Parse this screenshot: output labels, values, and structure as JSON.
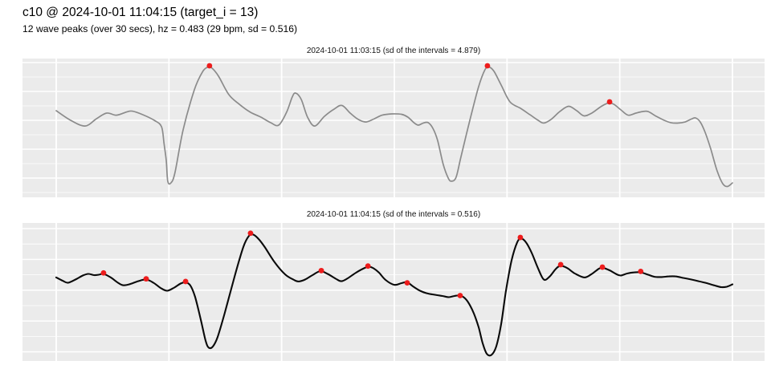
{
  "header": {
    "title": "c10 @ 2024-10-01 11:04:15 (target_i = 13)",
    "subtitle": "12 wave peaks (over 30 secs), hz = 0.483 (29 bpm, sd = 0.516)"
  },
  "colors": {
    "figure_background": "#ffffff",
    "strip_background": "#d4d4d4",
    "panel_background": "#ebebeb",
    "gridline": "#ffffff",
    "peak_marker": "#ed1c1c",
    "line_top_panel": "#8b8b8b",
    "line_bottom_panel": "#0a0a0a"
  },
  "chart_data": [
    {
      "type": "line",
      "strip_label": "2024-10-01 11:03:15 (sd of the intervals = 4.879)",
      "x_unit": "seconds",
      "x_range": [
        0,
        30
      ],
      "x_gridline_step": 5,
      "y_unit": "normalized amplitude (no axis labels shown)",
      "y_range": [
        0,
        1
      ],
      "grid": true,
      "legend": "none",
      "line_color": "#8b8b8b",
      "peak_color": "#ed1c1c",
      "peak_count": 3,
      "points": [
        [
          0.0,
          0.624
        ],
        [
          0.64,
          0.555
        ],
        [
          1.28,
          0.514
        ],
        [
          1.78,
          0.566
        ],
        [
          2.24,
          0.607
        ],
        [
          2.67,
          0.592
        ],
        [
          3.14,
          0.616
        ],
        [
          3.38,
          0.621
        ],
        [
          3.85,
          0.595
        ],
        [
          4.35,
          0.555
        ],
        [
          4.67,
          0.509
        ],
        [
          4.78,
          0.39
        ],
        [
          4.88,
          0.266
        ],
        [
          4.95,
          0.116
        ],
        [
          5.09,
          0.104
        ],
        [
          5.27,
          0.179
        ],
        [
          5.63,
          0.486
        ],
        [
          6.13,
          0.775
        ],
        [
          6.48,
          0.902
        ],
        [
          6.73,
          0.939
        ],
        [
          6.91,
          0.931
        ],
        [
          7.2,
          0.873
        ],
        [
          7.66,
          0.74
        ],
        [
          8.12,
          0.671
        ],
        [
          8.62,
          0.613
        ],
        [
          9.08,
          0.578
        ],
        [
          9.51,
          0.538
        ],
        [
          9.87,
          0.52
        ],
        [
          10.22,
          0.613
        ],
        [
          10.47,
          0.723
        ],
        [
          10.62,
          0.751
        ],
        [
          10.87,
          0.705
        ],
        [
          11.15,
          0.578
        ],
        [
          11.47,
          0.514
        ],
        [
          11.9,
          0.584
        ],
        [
          12.33,
          0.636
        ],
        [
          12.68,
          0.662
        ],
        [
          13.04,
          0.607
        ],
        [
          13.4,
          0.561
        ],
        [
          13.75,
          0.543
        ],
        [
          14.11,
          0.566
        ],
        [
          14.46,
          0.592
        ],
        [
          14.89,
          0.601
        ],
        [
          15.32,
          0.598
        ],
        [
          15.6,
          0.578
        ],
        [
          15.89,
          0.535
        ],
        [
          16.07,
          0.52
        ],
        [
          16.28,
          0.535
        ],
        [
          16.5,
          0.538
        ],
        [
          16.71,
          0.497
        ],
        [
          16.92,
          0.41
        ],
        [
          17.17,
          0.237
        ],
        [
          17.39,
          0.139
        ],
        [
          17.53,
          0.116
        ],
        [
          17.74,
          0.145
        ],
        [
          17.96,
          0.295
        ],
        [
          18.35,
          0.555
        ],
        [
          18.74,
          0.798
        ],
        [
          19.02,
          0.919
        ],
        [
          19.2,
          0.939
        ],
        [
          19.42,
          0.908
        ],
        [
          19.74,
          0.809
        ],
        [
          20.13,
          0.688
        ],
        [
          20.59,
          0.642
        ],
        [
          21.02,
          0.595
        ],
        [
          21.38,
          0.555
        ],
        [
          21.63,
          0.535
        ],
        [
          21.95,
          0.561
        ],
        [
          22.34,
          0.618
        ],
        [
          22.73,
          0.656
        ],
        [
          23.09,
          0.624
        ],
        [
          23.41,
          0.587
        ],
        [
          23.76,
          0.607
        ],
        [
          24.16,
          0.653
        ],
        [
          24.48,
          0.679
        ],
        [
          24.73,
          0.671
        ],
        [
          25.05,
          0.63
        ],
        [
          25.37,
          0.592
        ],
        [
          25.72,
          0.607
        ],
        [
          26.01,
          0.618
        ],
        [
          26.26,
          0.618
        ],
        [
          26.62,
          0.584
        ],
        [
          26.97,
          0.555
        ],
        [
          27.26,
          0.538
        ],
        [
          27.61,
          0.535
        ],
        [
          27.9,
          0.543
        ],
        [
          28.18,
          0.564
        ],
        [
          28.36,
          0.572
        ],
        [
          28.57,
          0.543
        ],
        [
          28.79,
          0.468
        ],
        [
          29.04,
          0.347
        ],
        [
          29.32,
          0.191
        ],
        [
          29.57,
          0.098
        ],
        [
          29.78,
          0.078
        ],
        [
          30.0,
          0.104
        ]
      ],
      "peaks": [
        [
          6.8,
          0.948
        ],
        [
          19.13,
          0.948
        ],
        [
          24.55,
          0.688
        ]
      ]
    },
    {
      "type": "line",
      "strip_label": "2024-10-01 11:04:15 (sd of the intervals = 0.516)",
      "x_unit": "seconds",
      "x_range": [
        0,
        30
      ],
      "x_gridline_step": 5,
      "y_unit": "normalized amplitude (no axis labels shown)",
      "y_range": [
        0,
        1
      ],
      "grid": true,
      "legend": "none",
      "line_color": "#0a0a0a",
      "peak_color": "#ed1c1c",
      "peak_count": 12,
      "points": [
        [
          0.0,
          0.605
        ],
        [
          0.29,
          0.581
        ],
        [
          0.53,
          0.567
        ],
        [
          0.89,
          0.593
        ],
        [
          1.18,
          0.619
        ],
        [
          1.43,
          0.631
        ],
        [
          1.67,
          0.622
        ],
        [
          1.89,
          0.625
        ],
        [
          2.1,
          0.631
        ],
        [
          2.42,
          0.605
        ],
        [
          2.74,
          0.567
        ],
        [
          2.96,
          0.549
        ],
        [
          3.24,
          0.555
        ],
        [
          3.63,
          0.578
        ],
        [
          3.99,
          0.59
        ],
        [
          4.31,
          0.567
        ],
        [
          4.63,
          0.529
        ],
        [
          4.92,
          0.509
        ],
        [
          5.24,
          0.532
        ],
        [
          5.52,
          0.561
        ],
        [
          5.74,
          0.57
        ],
        [
          5.95,
          0.547
        ],
        [
          6.16,
          0.465
        ],
        [
          6.41,
          0.302
        ],
        [
          6.63,
          0.145
        ],
        [
          6.77,
          0.096
        ],
        [
          6.95,
          0.105
        ],
        [
          7.16,
          0.174
        ],
        [
          7.48,
          0.349
        ],
        [
          7.91,
          0.61
        ],
        [
          8.3,
          0.826
        ],
        [
          8.55,
          0.907
        ],
        [
          8.73,
          0.916
        ],
        [
          8.98,
          0.884
        ],
        [
          9.26,
          0.823
        ],
        [
          9.69,
          0.715
        ],
        [
          10.15,
          0.628
        ],
        [
          10.55,
          0.587
        ],
        [
          10.76,
          0.576
        ],
        [
          11.04,
          0.59
        ],
        [
          11.4,
          0.625
        ],
        [
          11.72,
          0.651
        ],
        [
          12.04,
          0.631
        ],
        [
          12.4,
          0.596
        ],
        [
          12.65,
          0.578
        ],
        [
          12.93,
          0.599
        ],
        [
          13.32,
          0.642
        ],
        [
          13.72,
          0.677
        ],
        [
          13.89,
          0.683
        ],
        [
          14.07,
          0.672
        ],
        [
          14.32,
          0.64
        ],
        [
          14.61,
          0.587
        ],
        [
          15.0,
          0.552
        ],
        [
          15.32,
          0.564
        ],
        [
          15.57,
          0.57
        ],
        [
          15.85,
          0.538
        ],
        [
          16.14,
          0.509
        ],
        [
          16.42,
          0.491
        ],
        [
          16.78,
          0.48
        ],
        [
          17.13,
          0.471
        ],
        [
          17.42,
          0.462
        ],
        [
          17.67,
          0.471
        ],
        [
          17.89,
          0.474
        ],
        [
          18.1,
          0.459
        ],
        [
          18.31,
          0.416
        ],
        [
          18.53,
          0.343
        ],
        [
          18.74,
          0.244
        ],
        [
          18.92,
          0.128
        ],
        [
          19.1,
          0.052
        ],
        [
          19.31,
          0.044
        ],
        [
          19.52,
          0.105
        ],
        [
          19.74,
          0.267
        ],
        [
          19.95,
          0.506
        ],
        [
          20.2,
          0.727
        ],
        [
          20.45,
          0.86
        ],
        [
          20.63,
          0.887
        ],
        [
          20.84,
          0.86
        ],
        [
          21.09,
          0.785
        ],
        [
          21.38,
          0.669
        ],
        [
          21.63,
          0.59
        ],
        [
          21.88,
          0.61
        ],
        [
          22.16,
          0.666
        ],
        [
          22.37,
          0.689
        ],
        [
          22.66,
          0.674
        ],
        [
          23.01,
          0.634
        ],
        [
          23.44,
          0.605
        ],
        [
          23.76,
          0.631
        ],
        [
          24.08,
          0.669
        ],
        [
          24.26,
          0.674
        ],
        [
          24.55,
          0.657
        ],
        [
          24.83,
          0.631
        ],
        [
          25.04,
          0.619
        ],
        [
          25.33,
          0.634
        ],
        [
          25.65,
          0.642
        ],
        [
          25.94,
          0.642
        ],
        [
          26.26,
          0.625
        ],
        [
          26.54,
          0.61
        ],
        [
          26.86,
          0.608
        ],
        [
          27.18,
          0.613
        ],
        [
          27.47,
          0.613
        ],
        [
          27.82,
          0.602
        ],
        [
          28.18,
          0.59
        ],
        [
          28.5,
          0.578
        ],
        [
          28.86,
          0.564
        ],
        [
          29.21,
          0.547
        ],
        [
          29.5,
          0.535
        ],
        [
          29.75,
          0.538
        ],
        [
          30.0,
          0.555
        ]
      ],
      "peaks": [
        [
          2.1,
          0.638
        ],
        [
          3.99,
          0.595
        ],
        [
          5.74,
          0.576
        ],
        [
          8.62,
          0.926
        ],
        [
          11.76,
          0.655
        ],
        [
          13.83,
          0.688
        ],
        [
          15.57,
          0.566
        ],
        [
          17.92,
          0.474
        ],
        [
          20.59,
          0.895
        ],
        [
          22.38,
          0.698
        ],
        [
          24.23,
          0.68
        ],
        [
          25.93,
          0.649
        ]
      ]
    }
  ]
}
